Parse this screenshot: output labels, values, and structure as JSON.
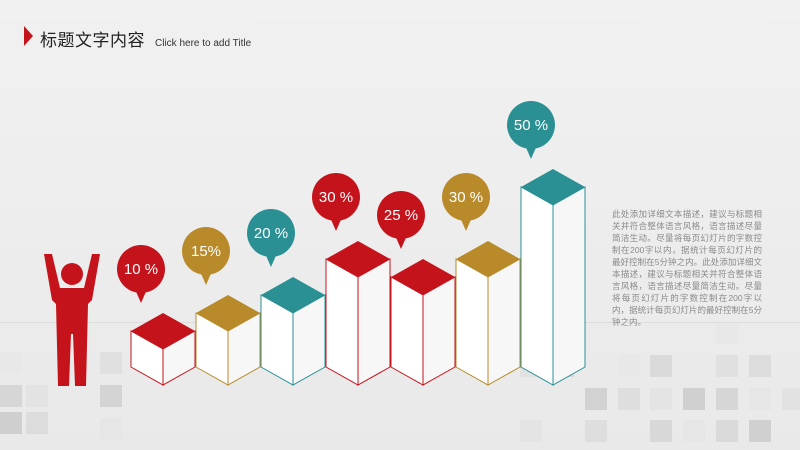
{
  "header": {
    "title_cn": "标题文字内容",
    "title_en": "Click here to add Title"
  },
  "description": "此处添加详细文本描述，建议与标题相关并符合整体语言风格，语言描述尽量简洁生动。尽量将每页幻灯片的字数控制在200字以内，据统计每页幻灯片的最好控制在5分钟之内。此处添加详细文本描述，建议与标题相关并符合整体语言风格，语言描述尽量简洁生动。尽量将每页幻灯片的字数控制在200字以内，据统计每页幻灯片的最好控制在5分钟之内。",
  "chart_data": {
    "type": "bar",
    "categories": [
      "",
      "",
      "",
      "",
      "",
      "",
      ""
    ],
    "values": [
      10,
      15,
      20,
      30,
      25,
      30,
      50
    ],
    "labels": [
      "10 %",
      "15%",
      "20 %",
      "30 %",
      "25 %",
      "30 %",
      "50 %"
    ],
    "colors": [
      "#c5131c",
      "#b88a2a",
      "#2a9094",
      "#c5131c",
      "#c5131c",
      "#b88a2a",
      "#2a9094"
    ],
    "bar_style": "isometric-3d",
    "value_labels": "speech-bubbles"
  },
  "figure": {
    "icon": "person-arms-raised-icon",
    "color": "#c5131c"
  },
  "accent_color": "#c5131c"
}
